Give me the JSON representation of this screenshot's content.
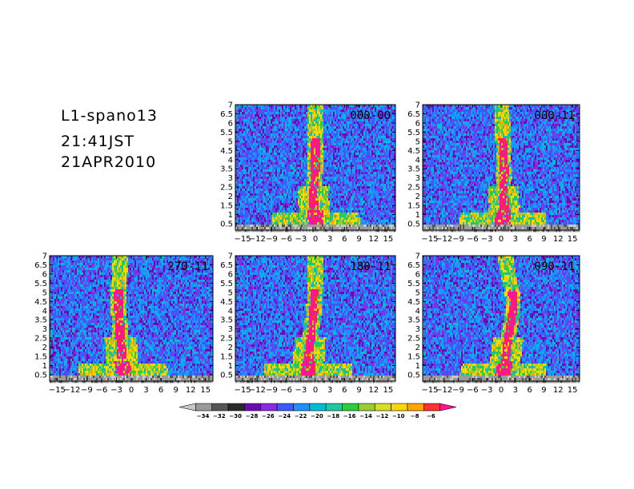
{
  "header": {
    "title": "L1-spano13",
    "time": "21:41JST",
    "date": "21APR2010"
  },
  "chart_data": [
    {
      "type": "heatmap",
      "panel_label": "000-00",
      "x_ticks": [
        -15,
        -12,
        -9,
        -6,
        -3,
        0,
        3,
        6,
        9,
        12,
        15
      ],
      "y_ticks": [
        0.5,
        1,
        1.5,
        2,
        2.5,
        3,
        3.5,
        4,
        4.5,
        5,
        5.5,
        6,
        6.5,
        7
      ],
      "xlim": [
        -16.5,
        16.5
      ],
      "ylim": [
        0.15,
        7
      ],
      "feature_center": [
        [
          0.5,
          0.2
        ],
        [
          1.0,
          0.0
        ],
        [
          1.5,
          -0.3
        ],
        [
          2.0,
          -0.5
        ],
        [
          2.5,
          -0.3
        ],
        [
          3.0,
          -0.2
        ],
        [
          3.5,
          0.0
        ],
        [
          4.0,
          -0.1
        ],
        [
          4.5,
          0.0
        ],
        [
          5.0,
          0.0
        ],
        [
          6.0,
          0.1
        ],
        [
          7.0,
          0.0
        ]
      ]
    },
    {
      "type": "heatmap",
      "panel_label": "000-11",
      "x_ticks": [
        -15,
        -12,
        -9,
        -6,
        -3,
        0,
        3,
        6,
        9,
        12,
        15
      ],
      "y_ticks": [
        0.5,
        1,
        1.5,
        2,
        2.5,
        3,
        3.5,
        4,
        4.5,
        5,
        5.5,
        6,
        6.5,
        7
      ],
      "xlim": [
        -16.5,
        16.5
      ],
      "ylim": [
        0.15,
        7
      ],
      "feature_center": [
        [
          0.5,
          0.3
        ],
        [
          1.0,
          0.5
        ],
        [
          1.5,
          0.7
        ],
        [
          2.0,
          0.6
        ],
        [
          2.5,
          0.5
        ],
        [
          3.0,
          0.6
        ],
        [
          3.5,
          0.7
        ],
        [
          4.0,
          0.5
        ],
        [
          4.5,
          0.6
        ],
        [
          5.0,
          0.4
        ],
        [
          6.0,
          0.3
        ],
        [
          7.0,
          0.2
        ]
      ]
    },
    {
      "type": "heatmap",
      "panel_label": "270-11",
      "x_ticks": [
        -15,
        -12,
        -9,
        -6,
        -3,
        0,
        3,
        6,
        9,
        12,
        15
      ],
      "y_ticks": [
        0.5,
        1,
        1.5,
        2,
        2.5,
        3,
        3.5,
        4,
        4.5,
        5,
        5.5,
        6,
        6.5,
        7
      ],
      "xlim": [
        -16.5,
        16.5
      ],
      "ylim": [
        0.15,
        7
      ],
      "feature_center": [
        [
          0.5,
          -1.5
        ],
        [
          1.0,
          -1.8
        ],
        [
          1.5,
          -2.0
        ],
        [
          2.0,
          -2.0
        ],
        [
          2.5,
          -2.2
        ],
        [
          3.0,
          -2.3
        ],
        [
          3.5,
          -2.4
        ],
        [
          4.0,
          -2.5
        ],
        [
          4.5,
          -2.6
        ],
        [
          5.0,
          -2.5
        ],
        [
          6.0,
          -2.4
        ],
        [
          7.0,
          -2.3
        ]
      ]
    },
    {
      "type": "heatmap",
      "panel_label": "180-11",
      "x_ticks": [
        -15,
        -12,
        -9,
        -6,
        -3,
        0,
        3,
        6,
        9,
        12,
        15
      ],
      "y_ticks": [
        0.5,
        1,
        1.5,
        2,
        2.5,
        3,
        3.5,
        4,
        4.5,
        5,
        5.5,
        6,
        6.5,
        7
      ],
      "xlim": [
        -16.5,
        16.5
      ],
      "ylim": [
        0.15,
        7
      ],
      "feature_center": [
        [
          0.5,
          -1.5
        ],
        [
          1.0,
          -1.5
        ],
        [
          1.5,
          -1.3
        ],
        [
          2.0,
          -1.2
        ],
        [
          2.5,
          -1.0
        ],
        [
          3.0,
          -0.8
        ],
        [
          3.5,
          -0.6
        ],
        [
          4.0,
          -0.3
        ],
        [
          4.5,
          -0.2
        ],
        [
          5.0,
          -0.1
        ],
        [
          6.0,
          0.0
        ],
        [
          7.0,
          0.0
        ]
      ]
    },
    {
      "type": "heatmap",
      "panel_label": "090-11",
      "x_ticks": [
        -15,
        -12,
        -9,
        -6,
        -3,
        0,
        3,
        6,
        9,
        12,
        15
      ],
      "y_ticks": [
        0.5,
        1,
        1.5,
        2,
        2.5,
        3,
        3.5,
        4,
        4.5,
        5,
        5.5,
        6,
        6.5,
        7
      ],
      "xlim": [
        -16.5,
        16.5
      ],
      "ylim": [
        0.15,
        7
      ],
      "feature_center": [
        [
          0.5,
          0.3
        ],
        [
          1.0,
          0.8
        ],
        [
          1.5,
          1.0
        ],
        [
          2.0,
          1.2
        ],
        [
          2.5,
          1.5
        ],
        [
          3.0,
          1.8
        ],
        [
          3.5,
          2.2
        ],
        [
          4.0,
          2.5
        ],
        [
          4.5,
          2.6
        ],
        [
          5.0,
          2.3
        ],
        [
          6.0,
          1.5
        ],
        [
          7.0,
          0.8
        ]
      ]
    }
  ],
  "colorbar": {
    "labels": [
      "-34",
      "-32",
      "-30",
      "-28",
      "-26",
      "-24",
      "-22",
      "-20",
      "-18",
      "-16",
      "-14",
      "-12",
      "-10",
      "-8",
      "-6"
    ],
    "colors": [
      "#c8c8c8",
      "#9a9a9a",
      "#555555",
      "#2a2a2a",
      "#6a0dad",
      "#8a2be2",
      "#3d5aff",
      "#1e90ff",
      "#00bcd4",
      "#20c9a0",
      "#2ecc40",
      "#9acd32",
      "#d4e020",
      "#ffd700",
      "#ffa500",
      "#ff3030",
      "#ff1493"
    ]
  }
}
